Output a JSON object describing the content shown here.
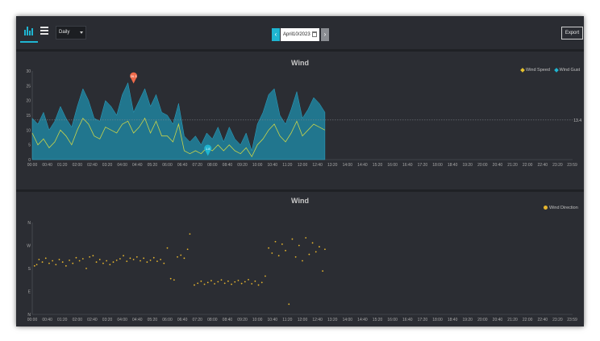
{
  "toolbar": {
    "chart_icon": "bar-chart-icon",
    "menu_icon": "hamburger-icon",
    "period": "Daily",
    "date": "April10/2023",
    "prev_label": "‹",
    "next_label": "›",
    "export_label": "Export"
  },
  "chart_data": [
    {
      "type": "area",
      "title": "Wind",
      "legend": [
        "Wind Speed",
        "Wind Gust"
      ],
      "legend_position": "top-right",
      "ylim": [
        0,
        30
      ],
      "yticks": [
        0,
        5,
        10,
        15,
        20,
        25,
        30
      ],
      "xticks": [
        "00:00",
        "00:40",
        "01:20",
        "02:00",
        "02:40",
        "03:20",
        "04:00",
        "04:40",
        "05:20",
        "06:00",
        "06:40",
        "07:20",
        "08:00",
        "08:40",
        "09:20",
        "10:00",
        "10:40",
        "11:20",
        "12:00",
        "12:40",
        "13:20",
        "14:00",
        "14:40",
        "15:20",
        "16:00",
        "16:40",
        "17:20",
        "18:00",
        "18:40",
        "19:20",
        "20:00",
        "20:40",
        "21:20",
        "22:00",
        "22:40",
        "23:20",
        "23:59"
      ],
      "x_hours": [
        0,
        0.25,
        0.5,
        0.75,
        1,
        1.25,
        1.5,
        1.75,
        2,
        2.25,
        2.5,
        2.75,
        3,
        3.25,
        3.5,
        3.75,
        4,
        4.25,
        4.5,
        4.75,
        5,
        5.25,
        5.5,
        5.75,
        6,
        6.25,
        6.5,
        6.75,
        7,
        7.25,
        7.5,
        7.75,
        8,
        8.25,
        8.5,
        8.75,
        9,
        9.25,
        9.5,
        9.75,
        10,
        10.25,
        10.5,
        10.75,
        11,
        11.25,
        11.5,
        11.75,
        12,
        12.25,
        12.5,
        12.75,
        13
      ],
      "series": [
        {
          "name": "Wind Speed",
          "color": "#c9d44a",
          "values": [
            9,
            5,
            7,
            4,
            6,
            10,
            8,
            5,
            10,
            14,
            12,
            8,
            7,
            11,
            10,
            9,
            12,
            13,
            9,
            11,
            14,
            9,
            13,
            8,
            8,
            6,
            12,
            3,
            2,
            3,
            2,
            4,
            3,
            5,
            3,
            5,
            3,
            2,
            4,
            1,
            5,
            7,
            10,
            12,
            8,
            6,
            9,
            13,
            8,
            10,
            12,
            11,
            10
          ]
        },
        {
          "name": "Wind Gust",
          "color": "#1f8fae",
          "values": [
            14,
            12,
            16,
            10,
            13,
            18,
            14,
            11,
            18,
            24,
            20,
            14,
            13,
            20,
            18,
            15,
            22,
            26,
            16,
            20,
            24,
            18,
            22,
            16,
            15,
            12,
            19,
            8,
            6,
            8,
            5,
            9,
            7,
            11,
            6,
            11,
            7,
            5,
            9,
            3,
            12,
            16,
            22,
            24,
            15,
            12,
            17,
            23,
            14,
            17,
            21,
            19,
            16
          ]
        }
      ],
      "reference_line": 13.4,
      "markers": [
        {
          "label": "26.3",
          "x_hour": 4.5,
          "y": 26.3,
          "color": "#ef6a4a"
        },
        {
          "label": "1.8",
          "x_hour": 7.8,
          "y": 1.8,
          "color": "#1fb5d1"
        }
      ]
    },
    {
      "type": "scatter",
      "title": "Wind",
      "legend": [
        "Wind Direction"
      ],
      "legend_position": "top-right",
      "color": "#e6b52e",
      "yticks": [
        "N",
        "E",
        "S",
        "W",
        "N"
      ],
      "ylim": [
        0,
        360
      ],
      "xticks": [
        "00:00",
        "00:40",
        "01:20",
        "02:00",
        "02:40",
        "03:20",
        "04:00",
        "04:40",
        "05:20",
        "06:00",
        "06:40",
        "07:20",
        "08:00",
        "08:40",
        "09:20",
        "10:00",
        "10:40",
        "11:20",
        "12:00",
        "12:40",
        "13:20",
        "14:00",
        "14:40",
        "15:20",
        "16:00",
        "16:40",
        "17:20",
        "18:00",
        "18:40",
        "19:20",
        "20:00",
        "20:40",
        "21:20",
        "22:00",
        "22:40",
        "23:20",
        "23:59"
      ],
      "points": [
        [
          0.1,
          190
        ],
        [
          0.2,
          195
        ],
        [
          0.3,
          215
        ],
        [
          0.45,
          205
        ],
        [
          0.6,
          220
        ],
        [
          0.75,
          200
        ],
        [
          0.9,
          210
        ],
        [
          1.05,
          195
        ],
        [
          1.2,
          215
        ],
        [
          1.35,
          205
        ],
        [
          1.5,
          190
        ],
        [
          1.65,
          212
        ],
        [
          1.8,
          200
        ],
        [
          1.95,
          222
        ],
        [
          2.1,
          210
        ],
        [
          2.25,
          218
        ],
        [
          2.4,
          180
        ],
        [
          2.55,
          225
        ],
        [
          2.7,
          230
        ],
        [
          2.85,
          205
        ],
        [
          3.0,
          215
        ],
        [
          3.15,
          200
        ],
        [
          3.3,
          210
        ],
        [
          3.45,
          195
        ],
        [
          3.6,
          205
        ],
        [
          3.75,
          212
        ],
        [
          3.9,
          218
        ],
        [
          4.05,
          230
        ],
        [
          4.2,
          208
        ],
        [
          4.35,
          220
        ],
        [
          4.5,
          215
        ],
        [
          4.65,
          225
        ],
        [
          4.8,
          210
        ],
        [
          4.95,
          220
        ],
        [
          5.1,
          205
        ],
        [
          5.25,
          212
        ],
        [
          5.4,
          222
        ],
        [
          5.55,
          208
        ],
        [
          5.7,
          215
        ],
        [
          5.85,
          200
        ],
        [
          6.0,
          260
        ],
        [
          6.15,
          140
        ],
        [
          6.3,
          135
        ],
        [
          6.45,
          225
        ],
        [
          6.6,
          232
        ],
        [
          6.75,
          220
        ],
        [
          6.9,
          255
        ],
        [
          7.0,
          315
        ],
        [
          7.2,
          115
        ],
        [
          7.35,
          122
        ],
        [
          7.5,
          130
        ],
        [
          7.65,
          118
        ],
        [
          7.8,
          125
        ],
        [
          7.95,
          132
        ],
        [
          8.1,
          120
        ],
        [
          8.25,
          128
        ],
        [
          8.4,
          135
        ],
        [
          8.55,
          122
        ],
        [
          8.7,
          130
        ],
        [
          8.85,
          118
        ],
        [
          9.0,
          127
        ],
        [
          9.15,
          133
        ],
        [
          9.3,
          121
        ],
        [
          9.45,
          128
        ],
        [
          9.6,
          136
        ],
        [
          9.75,
          120
        ],
        [
          9.9,
          130
        ],
        [
          10.05,
          115
        ],
        [
          10.2,
          125
        ],
        [
          10.35,
          150
        ],
        [
          10.5,
          260
        ],
        [
          10.65,
          240
        ],
        [
          10.8,
          285
        ],
        [
          10.95,
          230
        ],
        [
          11.1,
          275
        ],
        [
          11.25,
          250
        ],
        [
          11.4,
          40
        ],
        [
          11.55,
          295
        ],
        [
          11.7,
          225
        ],
        [
          11.85,
          270
        ],
        [
          12.0,
          210
        ],
        [
          12.15,
          300
        ],
        [
          12.3,
          235
        ],
        [
          12.45,
          280
        ],
        [
          12.6,
          245
        ],
        [
          12.75,
          265
        ],
        [
          12.9,
          170
        ],
        [
          13.0,
          255
        ]
      ]
    }
  ]
}
